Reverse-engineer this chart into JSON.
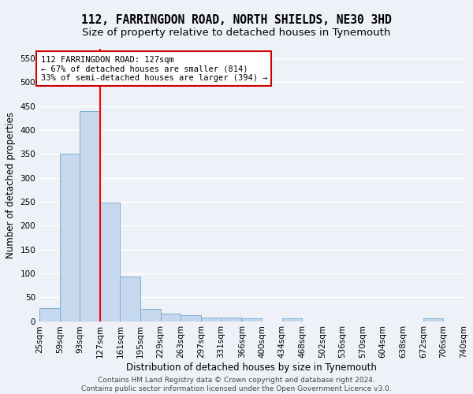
{
  "title": "112, FARRINGDON ROAD, NORTH SHIELDS, NE30 3HD",
  "subtitle": "Size of property relative to detached houses in Tynemouth",
  "xlabel": "Distribution of detached houses by size in Tynemouth",
  "ylabel": "Number of detached properties",
  "bin_edges": [
    25,
    59,
    93,
    127,
    161,
    195,
    229,
    263,
    297,
    331,
    366,
    400,
    434,
    468,
    502,
    536,
    570,
    604,
    638,
    672,
    706
  ],
  "bar_heights": [
    27,
    350,
    440,
    248,
    93,
    25,
    15,
    13,
    7,
    7,
    5,
    0,
    5,
    0,
    0,
    0,
    0,
    0,
    0,
    5
  ],
  "bar_color": "#c5d8ed",
  "bar_edge_color": "#7bafd4",
  "red_line_x": 127,
  "ylim": [
    0,
    570
  ],
  "yticks": [
    0,
    50,
    100,
    150,
    200,
    250,
    300,
    350,
    400,
    450,
    500,
    550
  ],
  "annotation_line1": "112 FARRINGDON ROAD: 127sqm",
  "annotation_line2": "← 67% of detached houses are smaller (814)",
  "annotation_line3": "33% of semi-detached houses are larger (394) →",
  "annotation_box_color": "#ffffff",
  "annotation_box_edge": "#cc0000",
  "footer_line1": "Contains HM Land Registry data © Crown copyright and database right 2024.",
  "footer_line2": "Contains public sector information licensed under the Open Government Licence v3.0.",
  "background_color": "#eef2f8",
  "grid_color": "#ffffff",
  "title_fontsize": 10.5,
  "subtitle_fontsize": 9.5,
  "axis_label_fontsize": 8.5,
  "tick_fontsize": 7.5,
  "annotation_fontsize": 7.5,
  "footer_fontsize": 6.5
}
